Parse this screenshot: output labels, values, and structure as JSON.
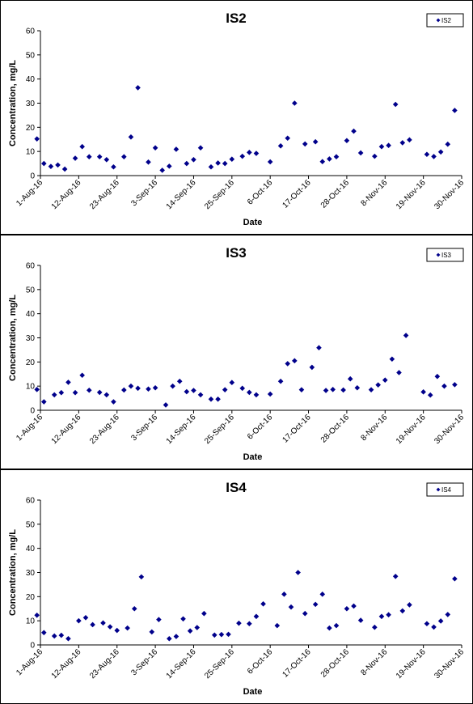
{
  "chart_data": [
    {
      "type": "scatter",
      "title": "IS2",
      "xlabel": "Date",
      "ylabel": "Concentration, mg/L",
      "ylim": [
        0,
        60
      ],
      "yticks": [
        "0",
        "10",
        "20",
        "30",
        "40",
        "50",
        "60"
      ],
      "xticks": [
        "1-Aug-16",
        "12-Aug-16",
        "23-Aug-16",
        "3-Sep-16",
        "14-Sep-16",
        "25-Sep-16",
        "6-Oct-16",
        "17-Oct-16",
        "28-Oct-16",
        "8-Nov-16",
        "19-Nov-16",
        "30-Nov-16"
      ],
      "legend_position": "top-right",
      "color": "#00008B",
      "series": [
        {
          "name": "IS2",
          "points": [
            [
              "2016-07-31",
              15.2
            ],
            [
              "2016-08-02",
              5.0
            ],
            [
              "2016-08-04",
              3.8
            ],
            [
              "2016-08-06",
              4.4
            ],
            [
              "2016-08-08",
              2.7
            ],
            [
              "2016-08-11",
              7.2
            ],
            [
              "2016-08-13",
              12.0
            ],
            [
              "2016-08-15",
              7.8
            ],
            [
              "2016-08-18",
              7.8
            ],
            [
              "2016-08-20",
              6.6
            ],
            [
              "2016-08-22",
              3.6
            ],
            [
              "2016-08-25",
              7.8
            ],
            [
              "2016-08-27",
              16.0
            ],
            [
              "2016-08-29",
              36.4
            ],
            [
              "2016-09-01",
              5.6
            ],
            [
              "2016-09-03",
              11.5
            ],
            [
              "2016-09-05",
              2.2
            ],
            [
              "2016-09-07",
              3.9
            ],
            [
              "2016-09-09",
              10.9
            ],
            [
              "2016-09-12",
              5.0
            ],
            [
              "2016-09-14",
              6.6
            ],
            [
              "2016-09-16",
              11.5
            ],
            [
              "2016-09-19",
              3.6
            ],
            [
              "2016-09-21",
              5.2
            ],
            [
              "2016-09-23",
              5.0
            ],
            [
              "2016-09-25",
              6.8
            ],
            [
              "2016-09-28",
              8.0
            ],
            [
              "2016-09-30",
              9.6
            ],
            [
              "2016-10-02",
              9.2
            ],
            [
              "2016-10-06",
              5.7
            ],
            [
              "2016-10-09",
              12.3
            ],
            [
              "2016-10-11",
              15.5
            ],
            [
              "2016-10-13",
              30.0
            ],
            [
              "2016-10-16",
              13.1
            ],
            [
              "2016-10-19",
              14.0
            ],
            [
              "2016-10-21",
              5.8
            ],
            [
              "2016-10-23",
              6.9
            ],
            [
              "2016-10-25",
              7.8
            ],
            [
              "2016-10-28",
              14.5
            ],
            [
              "2016-10-30",
              18.4
            ],
            [
              "2016-11-01",
              9.4
            ],
            [
              "2016-11-05",
              8.0
            ],
            [
              "2016-11-07",
              12.0
            ],
            [
              "2016-11-09",
              12.5
            ],
            [
              "2016-11-11",
              29.5
            ],
            [
              "2016-11-13",
              13.6
            ],
            [
              "2016-11-15",
              14.8
            ],
            [
              "2016-11-20",
              8.8
            ],
            [
              "2016-11-22",
              7.9
            ],
            [
              "2016-11-24",
              9.8
            ],
            [
              "2016-11-26",
              13.0
            ],
            [
              "2016-11-28",
              27.0
            ]
          ]
        }
      ]
    },
    {
      "type": "scatter",
      "title": "IS3",
      "xlabel": "Date",
      "ylabel": "Concentration, mg/L",
      "ylim": [
        0,
        60
      ],
      "yticks": [
        "0",
        "10",
        "20",
        "30",
        "40",
        "50",
        "60"
      ],
      "xticks": [
        "1-Aug-16",
        "12-Aug-16",
        "23-Aug-16",
        "3-Sep-16",
        "14-Sep-16",
        "25-Sep-16",
        "6-Oct-16",
        "17-Oct-16",
        "28-Oct-16",
        "8-Nov-16",
        "19-Nov-16",
        "30-Nov-16"
      ],
      "legend_position": "top-right",
      "color": "#00008B",
      "series": [
        {
          "name": "IS3",
          "points": [
            [
              "2016-07-31",
              8.6
            ],
            [
              "2016-08-02",
              3.5
            ],
            [
              "2016-08-05",
              6.4
            ],
            [
              "2016-08-07",
              7.3
            ],
            [
              "2016-08-09",
              11.6
            ],
            [
              "2016-08-11",
              7.3
            ],
            [
              "2016-08-13",
              14.5
            ],
            [
              "2016-08-15",
              8.3
            ],
            [
              "2016-08-18",
              7.4
            ],
            [
              "2016-08-20",
              6.4
            ],
            [
              "2016-08-22",
              3.5
            ],
            [
              "2016-08-25",
              8.4
            ],
            [
              "2016-08-27",
              10.0
            ],
            [
              "2016-08-29",
              9.1
            ],
            [
              "2016-09-01",
              8.8
            ],
            [
              "2016-09-03",
              9.3
            ],
            [
              "2016-09-06",
              2.2
            ],
            [
              "2016-09-08",
              10.0
            ],
            [
              "2016-09-10",
              12.0
            ],
            [
              "2016-09-12",
              7.7
            ],
            [
              "2016-09-14",
              8.2
            ],
            [
              "2016-09-16",
              6.4
            ],
            [
              "2016-09-19",
              4.6
            ],
            [
              "2016-09-21",
              4.6
            ],
            [
              "2016-09-23",
              8.5
            ],
            [
              "2016-09-25",
              11.5
            ],
            [
              "2016-09-28",
              9.1
            ],
            [
              "2016-09-30",
              7.4
            ],
            [
              "2016-10-02",
              6.4
            ],
            [
              "2016-10-06",
              6.7
            ],
            [
              "2016-10-09",
              12.0
            ],
            [
              "2016-10-11",
              19.3
            ],
            [
              "2016-10-13",
              20.5
            ],
            [
              "2016-10-15",
              8.5
            ],
            [
              "2016-10-18",
              17.8
            ],
            [
              "2016-10-20",
              25.9
            ],
            [
              "2016-10-22",
              8.2
            ],
            [
              "2016-10-24",
              8.6
            ],
            [
              "2016-10-27",
              8.4
            ],
            [
              "2016-10-29",
              13.0
            ],
            [
              "2016-10-31",
              9.3
            ],
            [
              "2016-11-04",
              8.5
            ],
            [
              "2016-11-06",
              10.5
            ],
            [
              "2016-11-08",
              12.5
            ],
            [
              "2016-11-10",
              21.2
            ],
            [
              "2016-11-12",
              15.6
            ],
            [
              "2016-11-14",
              31.0
            ],
            [
              "2016-11-19",
              7.6
            ],
            [
              "2016-11-21",
              6.3
            ],
            [
              "2016-11-23",
              14.0
            ],
            [
              "2016-11-25",
              10.0
            ],
            [
              "2016-11-28",
              10.6
            ]
          ]
        }
      ]
    },
    {
      "type": "scatter",
      "title": "IS4",
      "xlabel": "Date",
      "ylabel": "Concentration, mg/L",
      "ylim": [
        0,
        60
      ],
      "yticks": [
        "0",
        "10",
        "20",
        "30",
        "40",
        "50",
        "60"
      ],
      "xticks": [
        "1-Aug-16",
        "12-Aug-16",
        "23-Aug-16",
        "3-Sep-16",
        "14-Sep-16",
        "25-Sep-16",
        "6-Oct-16",
        "17-Oct-16",
        "28-Oct-16",
        "8-Nov-16",
        "19-Nov-16",
        "30-Nov-16"
      ],
      "legend_position": "top-right",
      "color": "#00008B",
      "series": [
        {
          "name": "IS4",
          "points": [
            [
              "2016-07-31",
              12.3
            ],
            [
              "2016-08-02",
              5.1
            ],
            [
              "2016-08-05",
              3.7
            ],
            [
              "2016-08-07",
              4.0
            ],
            [
              "2016-08-09",
              2.6
            ],
            [
              "2016-08-12",
              10.0
            ],
            [
              "2016-08-14",
              11.3
            ],
            [
              "2016-08-16",
              8.4
            ],
            [
              "2016-08-19",
              9.1
            ],
            [
              "2016-08-21",
              7.5
            ],
            [
              "2016-08-23",
              6.0
            ],
            [
              "2016-08-26",
              7.0
            ],
            [
              "2016-08-28",
              15.0
            ],
            [
              "2016-08-30",
              28.2
            ],
            [
              "2016-09-02",
              5.4
            ],
            [
              "2016-09-04",
              10.5
            ],
            [
              "2016-09-07",
              2.6
            ],
            [
              "2016-09-09",
              3.5
            ],
            [
              "2016-09-11",
              10.8
            ],
            [
              "2016-09-13",
              5.8
            ],
            [
              "2016-09-15",
              7.2
            ],
            [
              "2016-09-17",
              13.0
            ],
            [
              "2016-09-20",
              4.1
            ],
            [
              "2016-09-22",
              4.3
            ],
            [
              "2016-09-24",
              4.4
            ],
            [
              "2016-09-27",
              9.0
            ],
            [
              "2016-09-30",
              8.8
            ],
            [
              "2016-10-02",
              11.8
            ],
            [
              "2016-10-04",
              17.0
            ],
            [
              "2016-10-08",
              8.0
            ],
            [
              "2016-10-10",
              21.0
            ],
            [
              "2016-10-12",
              15.7
            ],
            [
              "2016-10-14",
              30.0
            ],
            [
              "2016-10-16",
              13.0
            ],
            [
              "2016-10-19",
              16.8
            ],
            [
              "2016-10-21",
              21.0
            ],
            [
              "2016-10-23",
              7.0
            ],
            [
              "2016-10-25",
              8.0
            ],
            [
              "2016-10-28",
              15.0
            ],
            [
              "2016-10-30",
              16.1
            ],
            [
              "2016-11-01",
              10.2
            ],
            [
              "2016-11-05",
              7.3
            ],
            [
              "2016-11-07",
              11.8
            ],
            [
              "2016-11-09",
              12.5
            ],
            [
              "2016-11-11",
              28.4
            ],
            [
              "2016-11-13",
              14.1
            ],
            [
              "2016-11-15",
              16.6
            ],
            [
              "2016-11-20",
              8.8
            ],
            [
              "2016-11-22",
              7.4
            ],
            [
              "2016-11-24",
              9.9
            ],
            [
              "2016-11-26",
              12.6
            ],
            [
              "2016-11-28",
              27.4
            ]
          ]
        }
      ]
    }
  ]
}
